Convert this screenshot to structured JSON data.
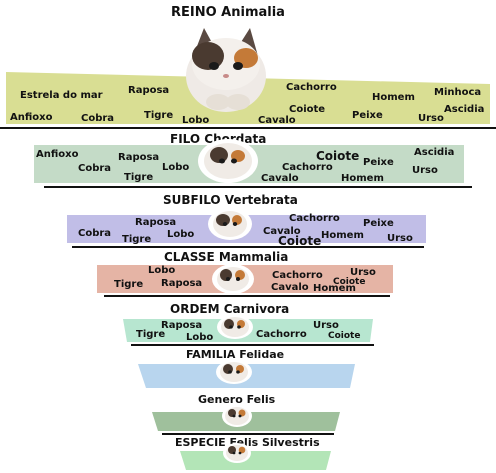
{
  "levels": [
    {
      "id": "reino",
      "title": "REINO Animalia",
      "color": "#d9de93",
      "words": [
        {
          "t": "Raposa"
        },
        {
          "t": "Cachorro"
        },
        {
          "t": "Minhoca"
        },
        {
          "t": "Estrela do mar"
        },
        {
          "t": "Homem"
        },
        {
          "t": "Coiote"
        },
        {
          "t": "Tigre"
        },
        {
          "t": "Ascidia"
        },
        {
          "t": "Anfioxo"
        },
        {
          "t": "Cobra"
        },
        {
          "t": "Lobo"
        },
        {
          "t": "Cavalo"
        },
        {
          "t": "Peixe"
        },
        {
          "t": "Urso"
        }
      ]
    },
    {
      "id": "filo",
      "title": "FILO Chordata",
      "color": "#c4dbc7",
      "words": [
        {
          "t": "Anfioxo"
        },
        {
          "t": "Raposa"
        },
        {
          "t": "Coiote"
        },
        {
          "t": "Ascidia"
        },
        {
          "t": "Cobra"
        },
        {
          "t": "Lobo"
        },
        {
          "t": "Cachorro"
        },
        {
          "t": "Peixe"
        },
        {
          "t": "Tigre"
        },
        {
          "t": "Urso"
        },
        {
          "t": "Cavalo"
        },
        {
          "t": "Homem"
        }
      ]
    },
    {
      "id": "subfilo",
      "title": "SUBFILO Vertebrata",
      "color": "#c1bee7",
      "words": [
        {
          "t": "Raposa"
        },
        {
          "t": "Cachorro"
        },
        {
          "t": "Peixe"
        },
        {
          "t": "Cobra"
        },
        {
          "t": "Lobo"
        },
        {
          "t": "Cavalo"
        },
        {
          "t": "Tigre"
        },
        {
          "t": "Homem"
        },
        {
          "t": "Coiote"
        },
        {
          "t": "Urso"
        }
      ]
    },
    {
      "id": "classe",
      "title": "CLASSE Mammalia",
      "color": "#e5b4a5",
      "words": [
        {
          "t": "Lobo"
        },
        {
          "t": "Urso"
        },
        {
          "t": "Cachorro"
        },
        {
          "t": "Coiote"
        },
        {
          "t": "Tigre"
        },
        {
          "t": "Raposa"
        },
        {
          "t": "Cavalo"
        },
        {
          "t": "Homem"
        }
      ]
    },
    {
      "id": "ordem",
      "title": "ORDEM Carnivora",
      "color": "#b7e6d0",
      "words": [
        {
          "t": "Raposa"
        },
        {
          "t": "Urso"
        },
        {
          "t": "Tigre"
        },
        {
          "t": "Cachorro"
        },
        {
          "t": "Lobo"
        },
        {
          "t": "Coiote"
        }
      ]
    },
    {
      "id": "familia",
      "title": "FAMILIA Felidae",
      "color": "#b8d5ee",
      "words": []
    },
    {
      "id": "genero",
      "title": "Genero Felis",
      "color": "#9fc09c",
      "words": []
    },
    {
      "id": "especie",
      "title": "ESPECIE Felis Silvestris",
      "color": "#b3e5b7",
      "words": []
    }
  ]
}
